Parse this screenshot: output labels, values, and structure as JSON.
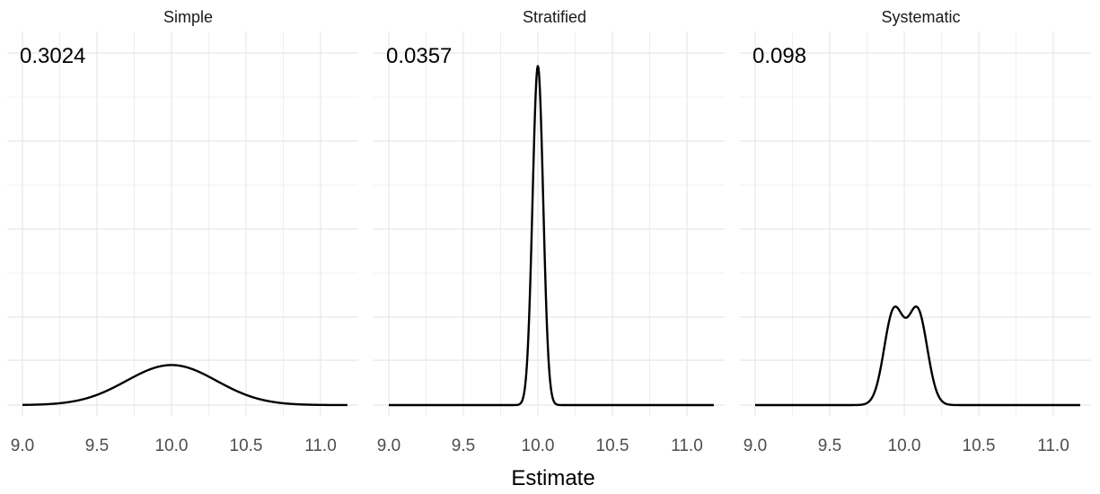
{
  "chart_data": {
    "type": "line",
    "xlabel": "Estimate",
    "ylabel": "",
    "xlim": [
      8.93,
      11.24
    ],
    "x_ticks": [
      9.0,
      9.5,
      10.0,
      10.5,
      11.0
    ],
    "x_tick_labels": [
      "9.0",
      "9.5",
      "10.0",
      "10.5",
      "11.0"
    ],
    "y_ticks_shown": false,
    "grid": true,
    "colors": {
      "line": "#000000",
      "grid": "#ebebeb",
      "background": "#ffffff"
    },
    "facets": [
      {
        "strip": "Simple",
        "annotation": "0.3024",
        "curve": {
          "kind": "normal",
          "mean": 10.0,
          "sd": 0.3024
        },
        "x_range": [
          9.0,
          11.18
        ]
      },
      {
        "strip": "Stratified",
        "annotation": "0.0357",
        "curve": {
          "kind": "normal",
          "mean": 10.0,
          "sd": 0.0357
        },
        "x_range": [
          9.0,
          11.18
        ]
      },
      {
        "strip": "Systematic",
        "annotation": "0.098",
        "curve": {
          "kind": "mixture",
          "components": [
            {
              "weight": 0.5,
              "mean": 9.93,
              "sd": 0.065
            },
            {
              "weight": 0.5,
              "mean": 10.09,
              "sd": 0.065
            }
          ]
        },
        "x_range": [
          9.0,
          11.18
        ]
      }
    ],
    "ylim": [
      0,
      11.5
    ]
  }
}
